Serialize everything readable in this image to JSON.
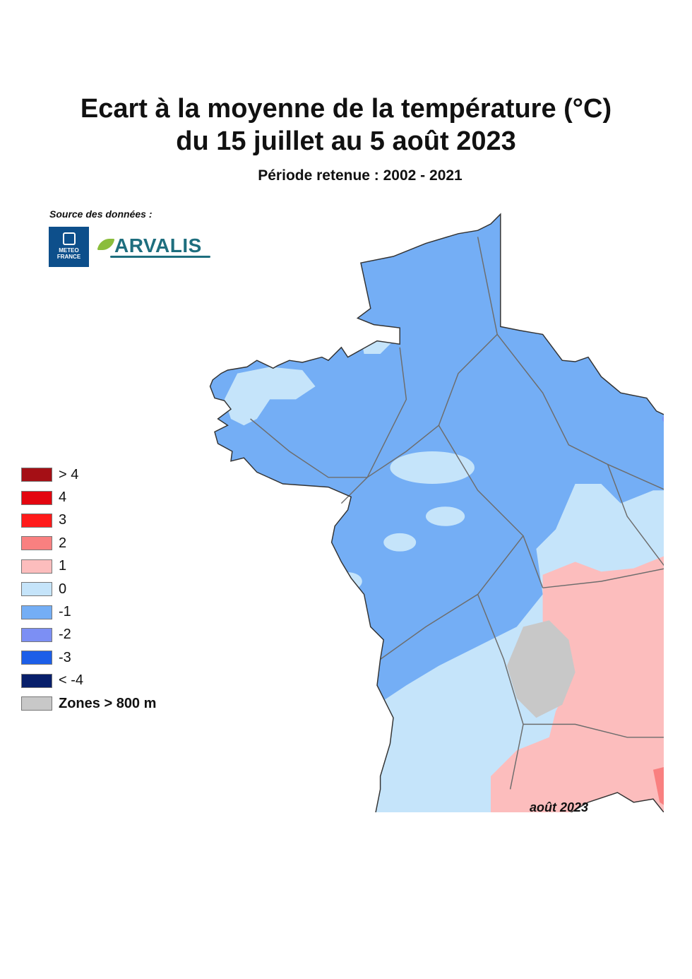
{
  "header": {
    "title_line_1": "Ecart à la moyenne de la température (°C)",
    "title_line_2": "du 15 juillet au 5 août 2023",
    "subtitle": "Période retenue : 2002 - 2021"
  },
  "source": {
    "label": "Source des données :",
    "meteo_logo_lines": [
      "METEO",
      "FRANCE"
    ],
    "arvalis_name": "ARVALIS"
  },
  "legend": {
    "items": [
      {
        "label": "> 4",
        "color": "#a50f15"
      },
      {
        "label": "4",
        "color": "#e3060f"
      },
      {
        "label": "3",
        "color": "#ff1a1a"
      },
      {
        "label": "2",
        "color": "#f98080"
      },
      {
        "label": "1",
        "color": "#fcbdbd"
      },
      {
        "label": "0",
        "color": "#c5e4fa"
      },
      {
        "label": "-1",
        "color": "#74aef5"
      },
      {
        "label": "-2",
        "color": "#7c8ff4"
      },
      {
        "label": "-3",
        "color": "#1c5ee8"
      },
      {
        "label": "< -4",
        "color": "#081f6b"
      },
      {
        "label": "Zones > 800 m",
        "color": "#c8c8c8"
      }
    ]
  },
  "map_date": "août 2023",
  "colors": {
    "anomaly_minus_1": "#74aef5",
    "anomaly_minus_2": "#7c8ff4",
    "anomaly_0": "#c5e4fa",
    "anomaly_1": "#fcbdbd",
    "anomaly_2": "#f98080",
    "anomaly_3": "#ff1a1a",
    "anomaly_4": "#e3060f",
    "zones_800m": "#c8c8c8",
    "borders": "#6d6d6d"
  }
}
